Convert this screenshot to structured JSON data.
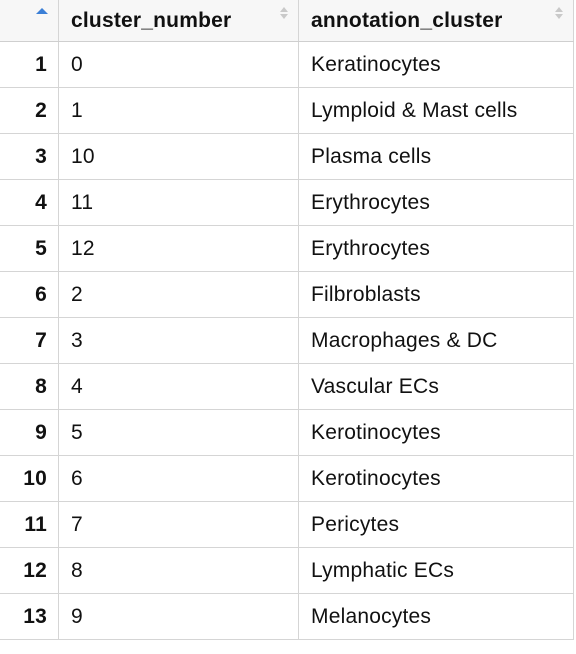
{
  "table": {
    "columns": [
      {
        "label": "",
        "sort": "ascending"
      },
      {
        "label": "cluster_number",
        "sort": "none"
      },
      {
        "label": "annotation_cluster",
        "sort": "none"
      }
    ],
    "rows": [
      {
        "index": "1",
        "cluster_number": "0",
        "annotation_cluster": "Keratinocytes"
      },
      {
        "index": "2",
        "cluster_number": "1",
        "annotation_cluster": "Lymploid & Mast cells"
      },
      {
        "index": "3",
        "cluster_number": "10",
        "annotation_cluster": "Plasma cells"
      },
      {
        "index": "4",
        "cluster_number": "11",
        "annotation_cluster": "Erythrocytes"
      },
      {
        "index": "5",
        "cluster_number": "12",
        "annotation_cluster": "Erythrocytes"
      },
      {
        "index": "6",
        "cluster_number": "2",
        "annotation_cluster": "Filbroblasts"
      },
      {
        "index": "7",
        "cluster_number": "3",
        "annotation_cluster": "Macrophages & DC"
      },
      {
        "index": "8",
        "cluster_number": "4",
        "annotation_cluster": "Vascular ECs"
      },
      {
        "index": "9",
        "cluster_number": "5",
        "annotation_cluster": "Kerotinocytes"
      },
      {
        "index": "10",
        "cluster_number": "6",
        "annotation_cluster": "Kerotinocytes"
      },
      {
        "index": "11",
        "cluster_number": "7",
        "annotation_cluster": "Pericytes"
      },
      {
        "index": "12",
        "cluster_number": "8",
        "annotation_cluster": "Lymphatic ECs"
      },
      {
        "index": "13",
        "cluster_number": "9",
        "annotation_cluster": "Melanocytes"
      }
    ]
  },
  "colors": {
    "sort_active": "#3b7fd6",
    "sort_inactive": "#c9c9c9",
    "header_bg": "#f7f7f7",
    "grid_line": "#d5d5d5"
  }
}
